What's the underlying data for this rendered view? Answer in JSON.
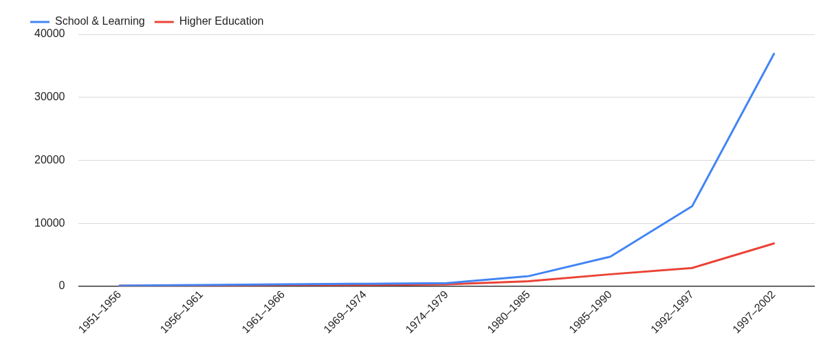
{
  "chart_data": {
    "type": "line",
    "categories": [
      "1951–1956",
      "1956–1961",
      "1961–1966",
      "1969–1974",
      "1974–1979",
      "1980–1985",
      "1985–1990",
      "1992–1997",
      "1997–2002"
    ],
    "series": [
      {
        "name": "School & Learning",
        "color": "#4285f4",
        "values": [
          100,
          200,
          300,
          400,
          500,
          1600,
          4700,
          12700,
          36900
        ]
      },
      {
        "name": "Higher Education",
        "color": "#ea4335",
        "values": [
          100,
          100,
          200,
          200,
          300,
          800,
          1900,
          2900,
          6800
        ]
      }
    ],
    "ylim": [
      0,
      40000
    ],
    "yticks": [
      0,
      10000,
      20000,
      30000,
      40000
    ],
    "grid": "y",
    "legend": "top left",
    "marker": "none",
    "line_style": "solid"
  }
}
